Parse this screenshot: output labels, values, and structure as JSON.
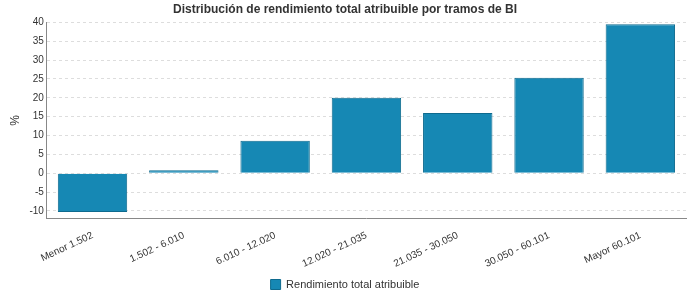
{
  "chart_data": {
    "type": "bar",
    "title": "Distribución de rendimiento total atribuible por tramos de BI",
    "y_label": "%",
    "categories": [
      "Menor 1.502",
      "1.502 - 6.010",
      "6.010 - 12.020",
      "12.020 - 21.035",
      "21.035 - 30.050",
      "30.050 - 60.101",
      "Mayor 60.101"
    ],
    "series": [
      {
        "name": "Rendimiento total atribuible",
        "color": "#1688b4",
        "values": [
          -10.3,
          0.8,
          8.6,
          20,
          16,
          25.3,
          39.5
        ]
      }
    ],
    "ylim": [
      -12,
      40
    ],
    "yticks": [
      -10,
      -5,
      0,
      5,
      10,
      15,
      20,
      25,
      30,
      35,
      40
    ],
    "grid": true,
    "legend": "bottom"
  }
}
